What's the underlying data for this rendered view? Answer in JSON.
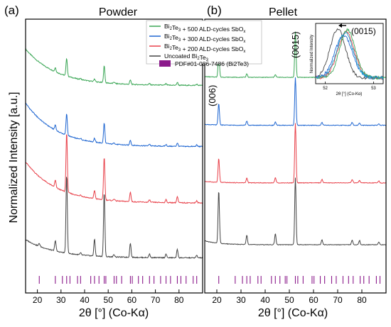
{
  "figure": {
    "ylabel": "Normalized Intensity [a.u.]"
  },
  "legend": {
    "entries": [
      {
        "base": "Bi",
        "s1": "2",
        "mid": "Te",
        "s2": "3",
        "rest": " + 500 ALD-cycles SbO",
        "s3": "x",
        "color": "#3aa655"
      },
      {
        "base": "Bi",
        "s1": "2",
        "mid": "Te",
        "s2": "3",
        "rest": " + 300 ALD-cycles SbO",
        "s3": "x",
        "color": "#1f66d1"
      },
      {
        "base": "Bi",
        "s1": "2",
        "mid": "Te",
        "s2": "3",
        "rest": " + 200 ALD-cycles SbO",
        "s3": "x",
        "color": "#e8414a"
      },
      {
        "base": "Uncoated Bi",
        "s1": "2",
        "mid": "Te",
        "s2": "3",
        "rest": "",
        "s3": "",
        "color": "#444444"
      }
    ],
    "ref_label": "PDF#01-086-7486 (Bi2Te3)",
    "ref_color": "#8b1a8b"
  },
  "chart_data": [
    {
      "type": "line",
      "panel_label": "(a)",
      "title": "Powder",
      "xlabel": "2θ [°] (Co-Kα)",
      "ylabel": "Normalized Intensity [a.u.]",
      "xlim": [
        15,
        90
      ],
      "xticks": [
        20,
        30,
        40,
        50,
        60,
        70,
        80
      ],
      "y_axis_ticks_labeled": false,
      "series": [
        {
          "name": "Bi2Te3 + 500 ALD-cycles SbOx",
          "color": "#3aa655",
          "offset": 0.73,
          "bg_start": 0.16,
          "bg_end": 0.008,
          "peaks": [
            [
              32.4,
              0.075
            ],
            [
              48.3,
              0.07
            ],
            [
              27.6,
              0.017
            ],
            [
              44.2,
              0.012
            ],
            [
              59.4,
              0.018
            ],
            [
              79.3,
              0.012
            ],
            [
              67.5,
              0.006
            ],
            [
              74.5,
              0.006
            ],
            [
              52.5,
              0.006
            ],
            [
              38.3,
              0.004
            ],
            [
              87.5,
              0.005
            ]
          ]
        },
        {
          "name": "Bi2Te3 + 300 ALD-cycles SbOx",
          "color": "#1f66d1",
          "offset": 0.475,
          "bg_start": 0.19,
          "bg_end": 0.008,
          "peaks": [
            [
              32.4,
              0.09
            ],
            [
              48.3,
              0.085
            ],
            [
              27.6,
              0.022
            ],
            [
              44.2,
              0.016
            ],
            [
              59.4,
              0.022
            ],
            [
              79.3,
              0.014
            ],
            [
              67.5,
              0.008
            ],
            [
              74.5,
              0.007
            ],
            [
              52.5,
              0.007
            ],
            [
              38.3,
              0.005
            ],
            [
              87.5,
              0.006
            ]
          ]
        },
        {
          "name": "Bi2Te3 + 200 ALD-cycles SbOx",
          "color": "#e8414a",
          "offset": 0.24,
          "bg_start": 0.18,
          "bg_end": 0.008,
          "peaks": [
            [
              32.4,
              0.25
            ],
            [
              48.3,
              0.18
            ],
            [
              27.6,
              0.03
            ],
            [
              44.2,
              0.035
            ],
            [
              59.4,
              0.04
            ],
            [
              79.3,
              0.025
            ],
            [
              67.5,
              0.01
            ],
            [
              74.5,
              0.012
            ],
            [
              52.5,
              0.008
            ],
            [
              38.3,
              0.006
            ],
            [
              87.5,
              0.008
            ]
          ]
        },
        {
          "name": "Uncoated Bi2Te3",
          "color": "#444444",
          "offset": 0.015,
          "bg_start": 0.08,
          "bg_end": 0.004,
          "peaks": [
            [
              32.4,
              0.33
            ],
            [
              48.3,
              0.27
            ],
            [
              27.6,
              0.045
            ],
            [
              44.2,
              0.07
            ],
            [
              59.4,
              0.06
            ],
            [
              79.3,
              0.035
            ],
            [
              67.5,
              0.015
            ],
            [
              74.5,
              0.015
            ],
            [
              52.5,
              0.01
            ],
            [
              38.3,
              0.008
            ],
            [
              87.5,
              0.01
            ],
            [
              20.8,
              0.012
            ]
          ]
        }
      ],
      "reference_ticks": [
        20.8,
        27.6,
        30.6,
        32.4,
        33.8,
        37.0,
        38.3,
        42.6,
        44.2,
        46.1,
        48.3,
        49.0,
        52.5,
        53.5,
        55.7,
        59.4,
        60.2,
        62.8,
        64.6,
        67.5,
        69.4,
        72.2,
        74.5,
        76.4,
        79.3,
        80.8,
        83.0,
        86.0,
        87.5
      ]
    },
    {
      "type": "line",
      "panel_label": "(b)",
      "title": "Pellet",
      "xlabel": "2θ [°] (Co-Kα)",
      "xlim": [
        15,
        90
      ],
      "xticks": [
        20,
        30,
        40,
        50,
        60,
        70,
        80
      ],
      "peak_annotations": [
        {
          "label": "(006)",
          "x": 20.8
        },
        {
          "label": "(0015)",
          "x": 52.5
        }
      ],
      "series": [
        {
          "name": "Bi2Te3 + 500 ALD-cycles SbOx",
          "color": "#3aa655",
          "offset": 0.77,
          "bg_start": 0.005,
          "bg_end": 0.002,
          "peaks": [
            [
              52.5,
              0.19
            ],
            [
              20.8,
              0.1
            ],
            [
              32.4,
              0.015
            ],
            [
              44.2,
              0.012
            ],
            [
              63.5,
              0.01
            ],
            [
              76.0,
              0.01
            ],
            [
              79.0,
              0.008
            ],
            [
              87.0,
              0.006
            ]
          ]
        },
        {
          "name": "Bi2Te3 + 300 ALD-cycles SbOx",
          "color": "#1f66d1",
          "offset": 0.57,
          "bg_start": 0.006,
          "bg_end": 0.002,
          "peaks": [
            [
              52.5,
              0.2
            ],
            [
              20.8,
              0.09
            ],
            [
              32.4,
              0.018
            ],
            [
              44.2,
              0.014
            ],
            [
              63.5,
              0.012
            ],
            [
              76.0,
              0.012
            ],
            [
              79.0,
              0.01
            ],
            [
              87.0,
              0.007
            ]
          ]
        },
        {
          "name": "Bi2Te3 + 200 ALD-cycles SbOx",
          "color": "#e8414a",
          "offset": 0.33,
          "bg_start": 0.008,
          "bg_end": 0.002,
          "peaks": [
            [
              52.5,
              0.25
            ],
            [
              20.8,
              0.1
            ],
            [
              32.4,
              0.02
            ],
            [
              44.2,
              0.022
            ],
            [
              63.5,
              0.014
            ],
            [
              76.0,
              0.014
            ],
            [
              79.0,
              0.01
            ],
            [
              87.0,
              0.008
            ]
          ]
        },
        {
          "name": "Uncoated Bi2Te3",
          "color": "#444444",
          "offset": 0.07,
          "bg_start": 0.02,
          "bg_end": 0.004,
          "peaks": [
            [
              52.5,
              0.28
            ],
            [
              20.8,
              0.22
            ],
            [
              32.4,
              0.04
            ],
            [
              44.2,
              0.045
            ],
            [
              63.5,
              0.02
            ],
            [
              76.0,
              0.02
            ],
            [
              79.0,
              0.018
            ],
            [
              87.0,
              0.012
            ]
          ]
        }
      ],
      "reference_ticks": [
        20.8,
        27.6,
        30.6,
        32.4,
        33.8,
        37.0,
        38.3,
        42.6,
        44.2,
        46.1,
        48.3,
        49.0,
        52.5,
        53.5,
        55.7,
        59.4,
        60.2,
        62.8,
        64.6,
        67.5,
        69.4,
        72.2,
        74.5,
        76.4,
        79.3,
        80.8,
        83.0,
        86.0,
        87.5
      ]
    },
    {
      "type": "line",
      "role": "inset",
      "annotation": "(0015)",
      "xlabel": "2θ [°] (Co-Kα)",
      "ylabel": "Normalized Intensity",
      "xlim": [
        51.8,
        53.2
      ],
      "xticks": [
        52,
        53
      ],
      "series": [
        {
          "name": "Uncoated Bi2Te3",
          "color": "#444444",
          "center": 52.26,
          "width": 0.16,
          "height": 0.92
        },
        {
          "name": "Bi2Te3 + 200 ALD-cycles SbOx",
          "color": "#e8414a",
          "center": 52.43,
          "width": 0.17,
          "height": 0.86
        },
        {
          "name": "Bi2Te3 + 300 ALD-cycles SbOx",
          "color": "#1f66d1",
          "center": 52.38,
          "width": 0.18,
          "height": 0.8
        },
        {
          "name": "Bi2Te3 + 500 ALD-cycles SbOx",
          "color": "#3aa655",
          "center": 52.46,
          "width": 0.16,
          "height": 0.9
        },
        {
          "name": "Bi2Te3 + 300 ALD-cycles SbOx",
          "color": "#19a3c9",
          "center": 52.41,
          "width": 0.17,
          "height": 0.84
        }
      ]
    }
  ]
}
